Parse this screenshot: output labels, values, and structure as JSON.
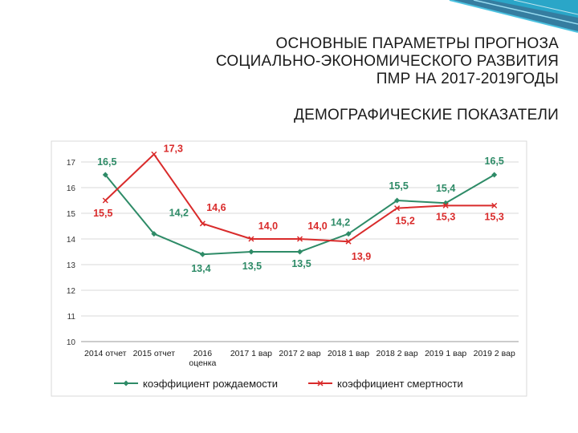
{
  "slide": {
    "title_lines": [
      "ОСНОВНЫЕ ПАРАМЕТРЫ ПРОГНОЗА",
      "СОЦИАЛЬНО-ЭКОНОМИЧЕСКОГО РАЗВИТИЯ",
      "ПМР НА 2017-2019ГОДЫ"
    ],
    "subtitle": "ДЕМОГРАФИЧЕСКИЕ ПОКАЗАТЕЛИ"
  },
  "chart_data": {
    "type": "line",
    "categories": [
      [
        "2014 отчет"
      ],
      [
        "2015 отчет"
      ],
      [
        "2016",
        "оценка"
      ],
      [
        "2017 1 вар"
      ],
      [
        "2017 2 вар"
      ],
      [
        "2018 1 вар"
      ],
      [
        "2018 2 вар"
      ],
      [
        "2019 1 вар"
      ],
      [
        "2019 2 вар"
      ]
    ],
    "ylim": [
      10,
      17
    ],
    "yticks": [
      10,
      11,
      12,
      13,
      14,
      15,
      16,
      17
    ],
    "grid": true,
    "legend_position": "bottom",
    "series": [
      {
        "name": "коэффициент рождаемости",
        "color": "#2e8b67",
        "marker": "diamond",
        "values": [
          16.5,
          14.2,
          13.4,
          13.5,
          13.5,
          14.2,
          15.5,
          15.4,
          16.5
        ],
        "labels": [
          "16,5",
          "14,2",
          "13,4",
          "13,5",
          "13,5",
          "14,2",
          "15,5",
          "15,4",
          "16,5"
        ]
      },
      {
        "name": "коэффициент смертности",
        "color": "#d92b2b",
        "marker": "x",
        "values": [
          15.5,
          17.3,
          14.6,
          14.0,
          14.0,
          13.9,
          15.2,
          15.3,
          15.3
        ],
        "labels": [
          "15,5",
          "17,3",
          "14,6",
          "14,0",
          "14,0",
          "13,9",
          "15,2",
          "15,3",
          "15,3"
        ]
      }
    ]
  }
}
